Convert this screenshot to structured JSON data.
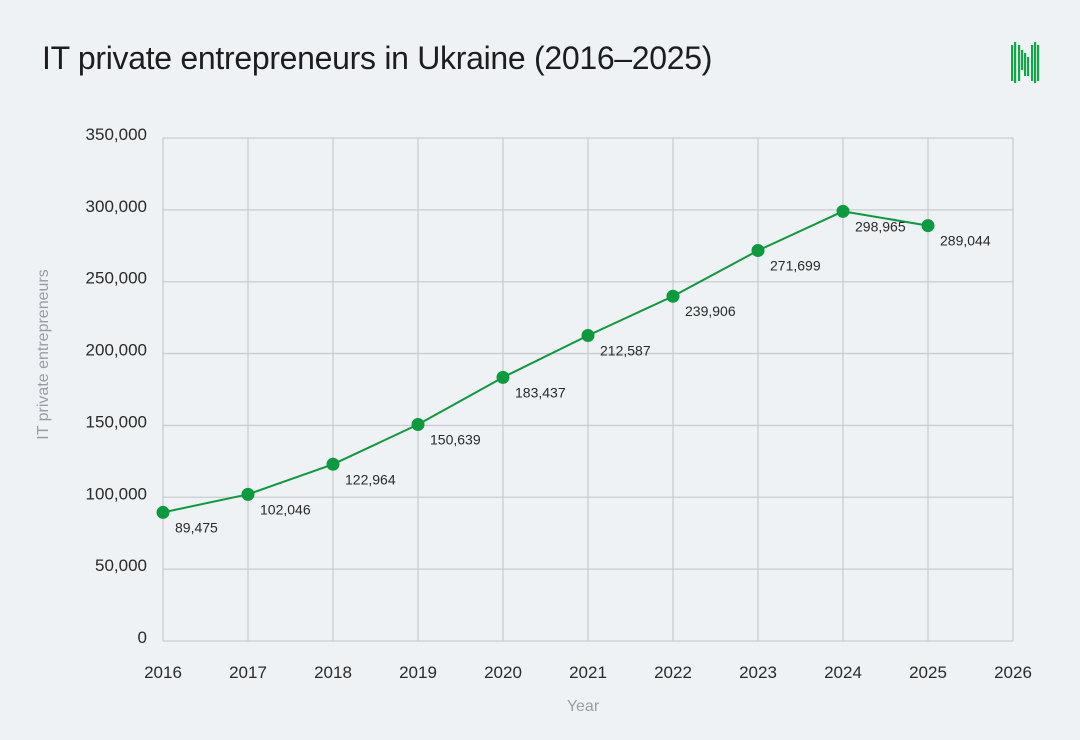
{
  "title": "IT private entrepreneurs in Ukraine (2016–2025)",
  "logo": "media-logo-bars",
  "colors": {
    "line": "#0b9a3c",
    "grid": "#c9ccd0",
    "background": "#eef2f5"
  },
  "chart_data": {
    "type": "line",
    "title": "IT private entrepreneurs in Ukraine (2016–2025)",
    "xlabel": "Year",
    "ylabel": "IT private entrepreneurs",
    "xlim": [
      2016,
      2026
    ],
    "ylim": [
      0,
      350000
    ],
    "x_ticks": [
      "2016",
      "2017",
      "2018",
      "2019",
      "2020",
      "2021",
      "2022",
      "2023",
      "2024",
      "2025",
      "2026"
    ],
    "y_ticks": [
      "0",
      "50,000",
      "100,000",
      "150,000",
      "200,000",
      "250,000",
      "300,000",
      "350,000"
    ],
    "grid": true,
    "x": [
      2016,
      2017,
      2018,
      2019,
      2020,
      2021,
      2022,
      2023,
      2024,
      2025
    ],
    "values": [
      89475,
      102046,
      122964,
      150639,
      183437,
      212587,
      239906,
      271699,
      298965,
      289044
    ],
    "data_labels": [
      "89,475",
      "102,046",
      "122,964",
      "150,639",
      "183,437",
      "212,587",
      "239,906",
      "271,699",
      "298,965",
      "289,044"
    ]
  }
}
